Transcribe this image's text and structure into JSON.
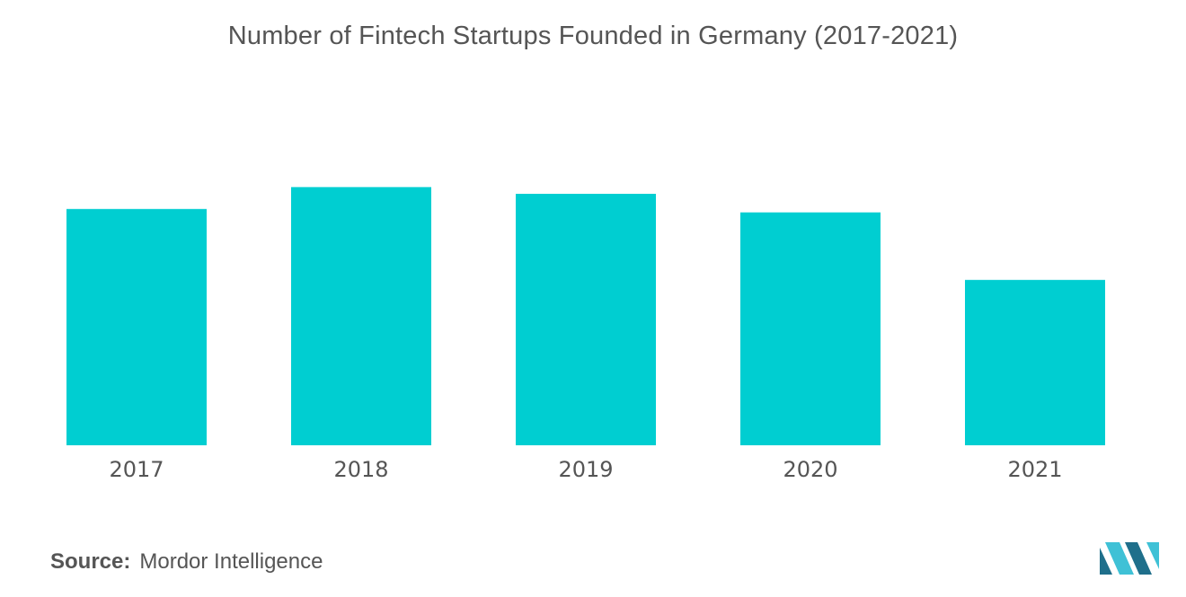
{
  "title": "Number of Fintech Startups Founded in Germany (2017-2021)",
  "source": {
    "label": "Source:",
    "value": "Mordor Intelligence"
  },
  "colors": {
    "bar": "#00CED1",
    "text": "#555555",
    "logo_dark": "#1f6f8b",
    "logo_light": "#3fc1d6"
  },
  "chart_data": {
    "type": "bar",
    "title": "Number of Fintech Startups Founded in Germany (2017-2021)",
    "xlabel": "",
    "ylabel": "",
    "categories": [
      "2017",
      "2018",
      "2019",
      "2020",
      "2021"
    ],
    "values": [
      70,
      76.5,
      74.5,
      69,
      49
    ],
    "ylim": [
      0,
      100
    ],
    "grid": false,
    "legend": "none"
  }
}
